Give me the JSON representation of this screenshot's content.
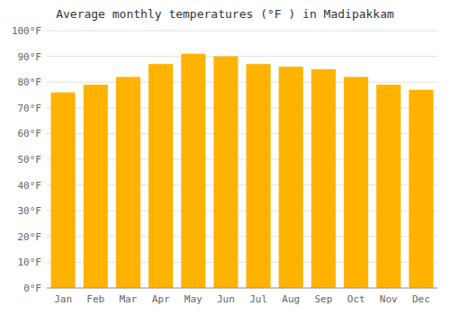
{
  "chart_data": {
    "type": "bar",
    "title": "Average monthly temperatures (°F ) in Madipakkam",
    "categories": [
      "Jan",
      "Feb",
      "Mar",
      "Apr",
      "May",
      "Jun",
      "Jul",
      "Aug",
      "Sep",
      "Oct",
      "Nov",
      "Dec"
    ],
    "values": [
      76,
      79,
      82,
      87,
      91,
      90,
      87,
      86,
      85,
      82,
      79,
      77
    ],
    "color": "#FFB300",
    "ylim": [
      0,
      100
    ],
    "yticks": [
      {
        "value": 0,
        "label": "0°F"
      },
      {
        "value": 10,
        "label": "10°F"
      },
      {
        "value": 20,
        "label": "20°F"
      },
      {
        "value": 30,
        "label": "30°F"
      },
      {
        "value": 40,
        "label": "40°F"
      },
      {
        "value": 50,
        "label": "50°F"
      },
      {
        "value": 60,
        "label": "60°F"
      },
      {
        "value": 70,
        "label": "70°F"
      },
      {
        "value": 80,
        "label": "80°F"
      },
      {
        "value": 90,
        "label": "90°F"
      },
      {
        "value": 100,
        "label": "100°F"
      }
    ],
    "grid": true
  }
}
